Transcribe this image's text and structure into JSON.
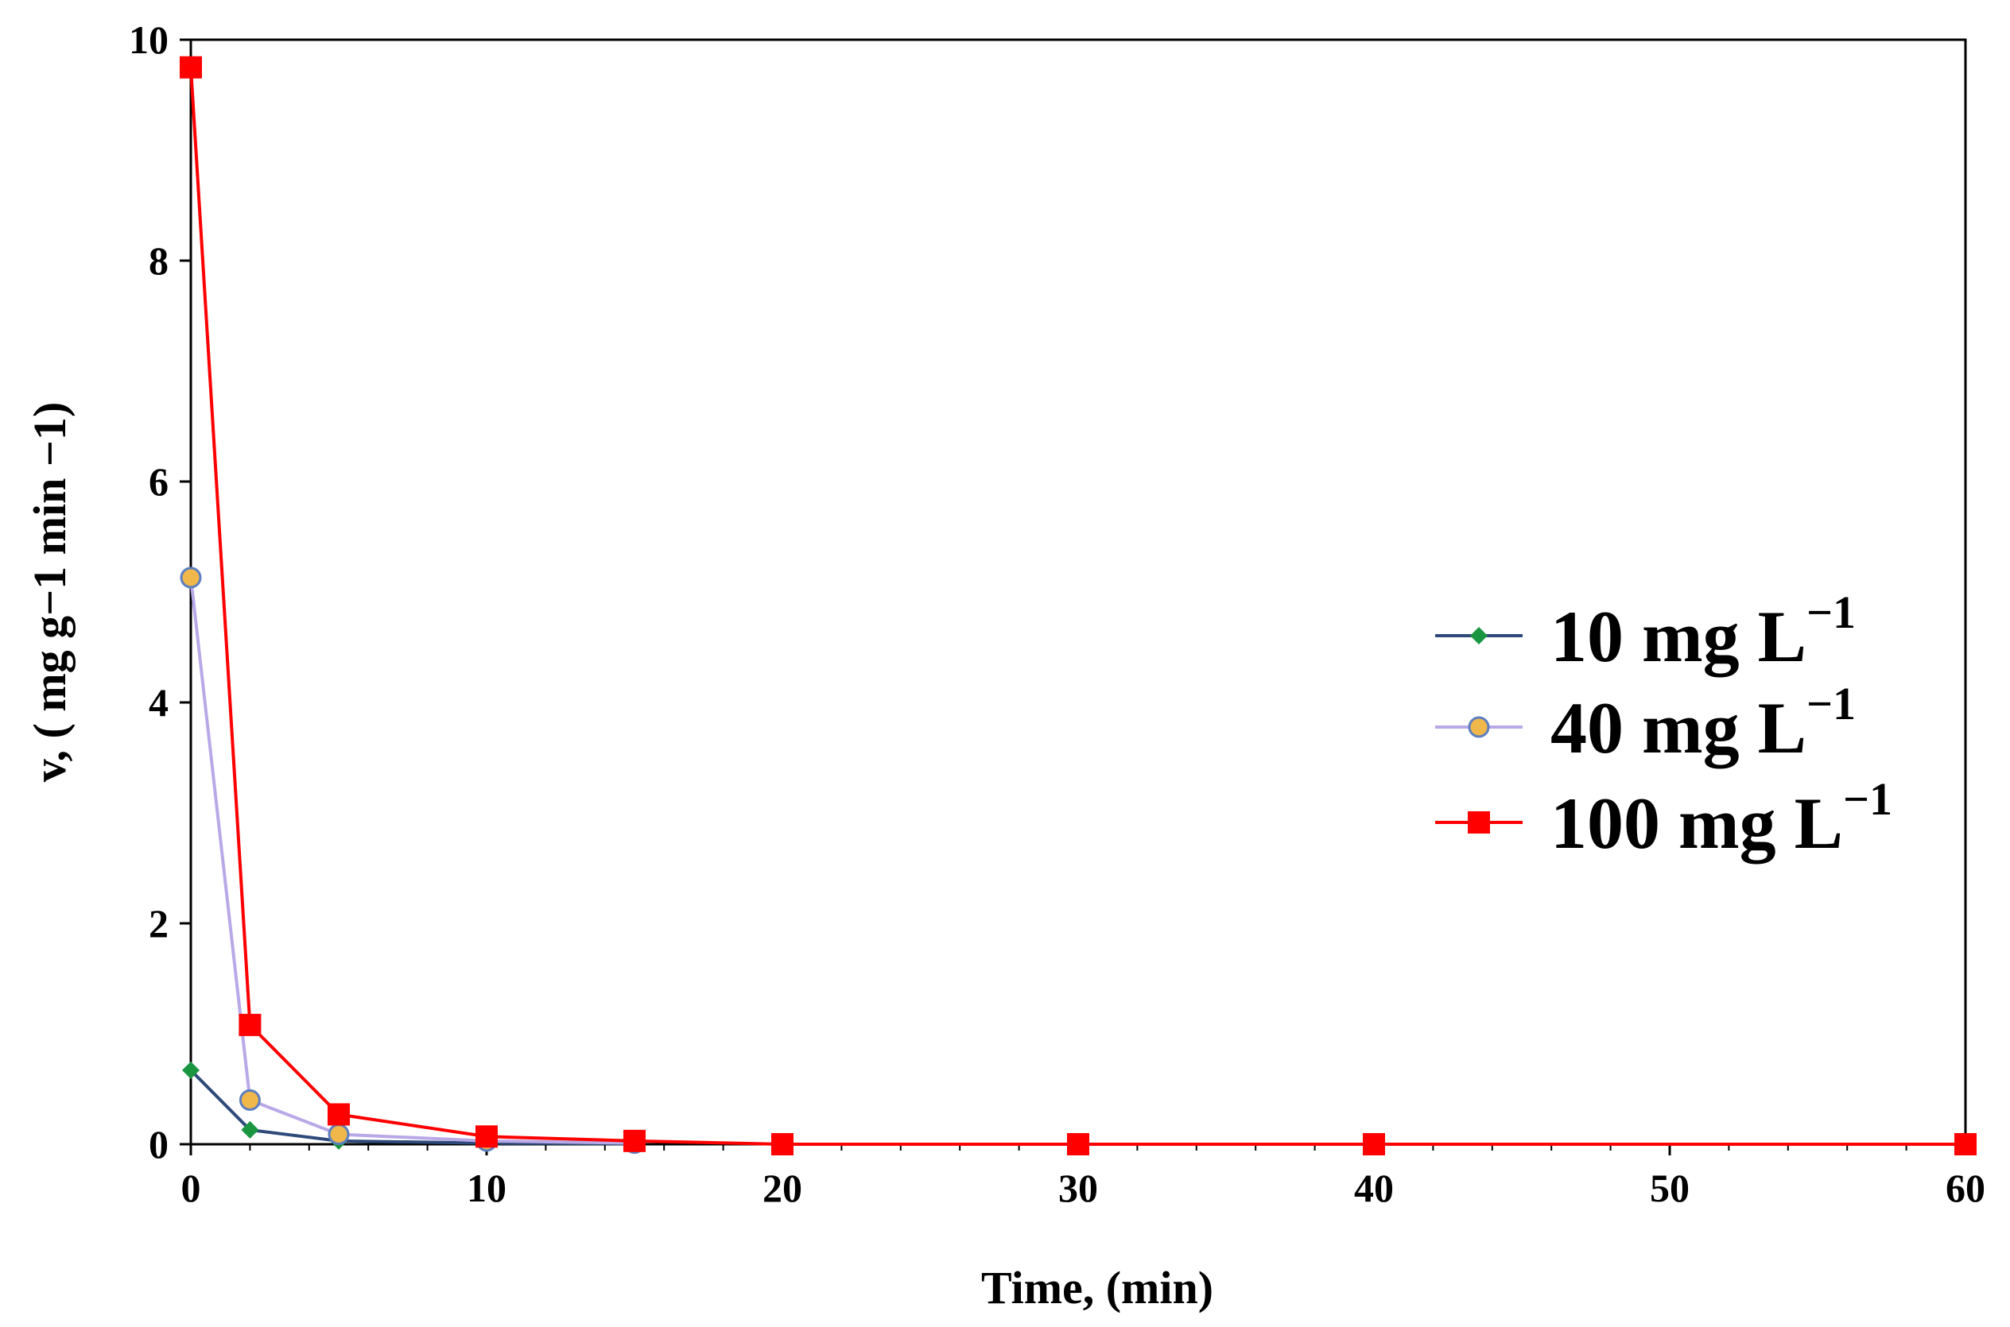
{
  "chart_data": {
    "type": "line",
    "title": "",
    "xlabel": "Time, (min)",
    "ylabel": "v, ( mg g−1 min −1)",
    "xlim": [
      0,
      60
    ],
    "ylim": [
      0,
      10
    ],
    "xticks": [
      0,
      10,
      20,
      30,
      40,
      50,
      60
    ],
    "yticks": [
      0,
      2,
      4,
      6,
      8,
      10
    ],
    "grid": false,
    "legend_position": "right",
    "series": [
      {
        "name": "10 mg L",
        "name_sup": "−1",
        "color": "#1a9641",
        "line_color": "#2e4a7a",
        "marker": "diamond",
        "marker_fill": "#1a9641",
        "x": [
          0,
          2,
          5,
          10,
          15
        ],
        "values": [
          0.67,
          0.13,
          0.03,
          0.01,
          0.005
        ]
      },
      {
        "name": "40 mg L",
        "name_sup": "−1",
        "color": "#f0b84a",
        "line_color": "#b9a8e8",
        "marker": "circle",
        "marker_fill": "#f0b84a",
        "marker_stroke": "#5b7fc0",
        "x": [
          0,
          2,
          5,
          10,
          15
        ],
        "values": [
          5.13,
          0.4,
          0.09,
          0.03,
          0.01
        ]
      },
      {
        "name": "100 mg L",
        "name_sup": "−1",
        "color": "#ff0000",
        "line_color": "#ff0000",
        "marker": "square",
        "marker_fill": "#ff0000",
        "x": [
          0,
          2,
          5,
          10,
          15,
          20,
          30,
          40,
          60
        ],
        "values": [
          9.75,
          1.08,
          0.27,
          0.07,
          0.03,
          0.0,
          0.0,
          0.0,
          0.0
        ]
      }
    ]
  }
}
